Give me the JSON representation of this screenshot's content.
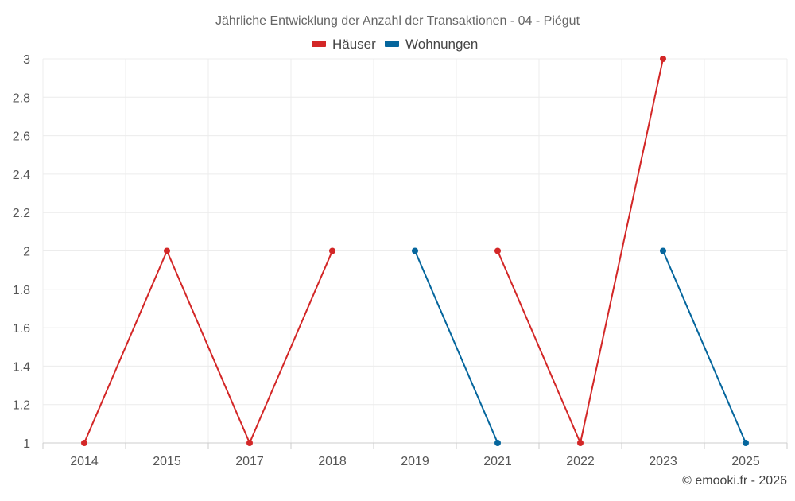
{
  "chart_data": {
    "type": "line",
    "title": "Jährliche Entwicklung der Anzahl der Transaktionen - 04 - Piégut",
    "categories": [
      "2014",
      "2015",
      "2017",
      "2018",
      "2019",
      "2021",
      "2022",
      "2023",
      "2025"
    ],
    "ylim": [
      1,
      3
    ],
    "yticks": [
      1,
      1.2,
      1.4,
      1.6,
      1.8,
      2,
      2.2,
      2.4,
      2.6,
      2.8,
      3
    ],
    "xlabel": "",
    "ylabel": "",
    "grid": true,
    "legend": {
      "position": "top-center"
    },
    "series": [
      {
        "name": "Häuser",
        "color": "#d32727",
        "values": [
          1,
          2,
          1,
          2,
          null,
          2,
          1,
          3,
          null
        ]
      },
      {
        "name": "Wohnungen",
        "color": "#05669d",
        "values": [
          null,
          null,
          null,
          null,
          2,
          1,
          null,
          2,
          1
        ]
      }
    ]
  },
  "credit": "© emooki.fr - 2026"
}
